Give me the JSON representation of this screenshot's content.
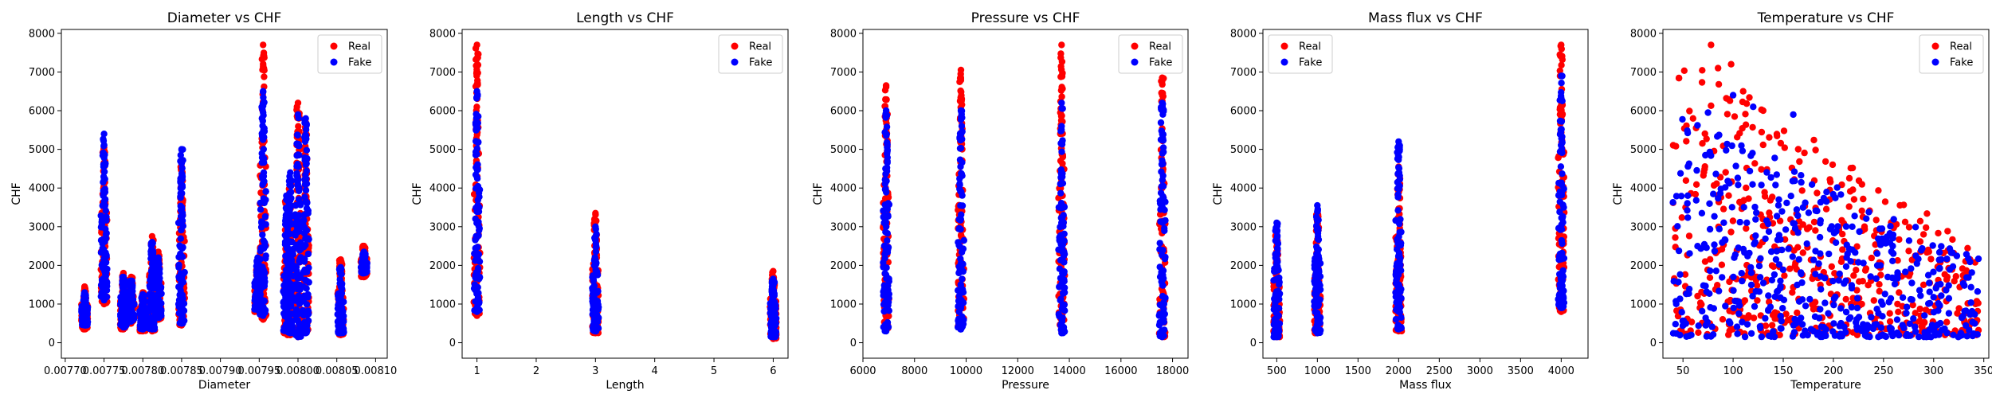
{
  "colors": {
    "real": "#ff0000",
    "fake": "#0000ff",
    "legend_border": "#cccccc"
  },
  "chart_data": [
    {
      "type": "scatter",
      "title": "Diameter vs CHF",
      "xlabel": "Diameter",
      "ylabel": "CHF",
      "xlim": [
        0.007695,
        0.008115
      ],
      "ylim": [
        -400,
        8100
      ],
      "xticks": [
        0.0077,
        0.00775,
        0.0078,
        0.00785,
        0.0079,
        0.00795,
        0.008,
        0.00805,
        0.0081
      ],
      "xtick_labels": [
        "0.00770",
        "0.00775",
        "0.00780",
        "0.00785",
        "0.00790",
        "0.00795",
        "0.00800",
        "0.00805",
        "0.00810"
      ],
      "yticks": [
        0,
        1000,
        2000,
        3000,
        4000,
        5000,
        6000,
        7000,
        8000
      ],
      "legend": {
        "location": "upper right",
        "entries": [
          "Real",
          "Fake"
        ]
      },
      "series": [
        {
          "name": "Real",
          "columns": [
            {
              "x": 0.007725,
              "y": [
                350,
                1450
              ]
            },
            {
              "x": 0.00775,
              "y": [
                1000,
                5050
              ]
            },
            {
              "x": 0.007775,
              "y": [
                350,
                1800
              ]
            },
            {
              "x": 0.007785,
              "y": [
                500,
                1700
              ]
            },
            {
              "x": 0.0078,
              "y": [
                300,
                1300
              ]
            },
            {
              "x": 0.007812,
              "y": [
                300,
                2750
              ]
            },
            {
              "x": 0.00782,
              "y": [
                600,
                2350
              ]
            },
            {
              "x": 0.00785,
              "y": [
                450,
                4550
              ]
            },
            {
              "x": 0.007948,
              "y": [
                800,
                1900
              ]
            },
            {
              "x": 0.007955,
              "y": [
                600,
                7700
              ]
            },
            {
              "x": 0.007985,
              "y": [
                250,
                3700
              ]
            },
            {
              "x": 0.00799,
              "y": [
                200,
                4200
              ]
            },
            {
              "x": 0.008,
              "y": [
                150,
                6200
              ]
            },
            {
              "x": 0.00801,
              "y": [
                300,
                5700
              ]
            },
            {
              "x": 0.008055,
              "y": [
                200,
                2150
              ]
            },
            {
              "x": 0.008085,
              "y": [
                1700,
                2500
              ]
            }
          ]
        },
        {
          "name": "Fake",
          "columns": [
            {
              "x": 0.007725,
              "y": [
                450,
                1300
              ]
            },
            {
              "x": 0.00775,
              "y": [
                1100,
                5400
              ]
            },
            {
              "x": 0.007775,
              "y": [
                400,
                1700
              ]
            },
            {
              "x": 0.007785,
              "y": [
                550,
                1600
              ]
            },
            {
              "x": 0.0078,
              "y": [
                350,
                1250
              ]
            },
            {
              "x": 0.007812,
              "y": [
                350,
                2600
              ]
            },
            {
              "x": 0.00782,
              "y": [
                650,
                2200
              ]
            },
            {
              "x": 0.00785,
              "y": [
                500,
                5000
              ]
            },
            {
              "x": 0.007948,
              "y": [
                850,
                2200
              ]
            },
            {
              "x": 0.007955,
              "y": [
                700,
                6500
              ]
            },
            {
              "x": 0.007985,
              "y": [
                300,
                3800
              ]
            },
            {
              "x": 0.00799,
              "y": [
                250,
                4400
              ]
            },
            {
              "x": 0.008,
              "y": [
                150,
                5900
              ]
            },
            {
              "x": 0.00801,
              "y": [
                250,
                5800
              ]
            },
            {
              "x": 0.008055,
              "y": [
                250,
                1950
              ]
            },
            {
              "x": 0.008085,
              "y": [
                1800,
                2350
              ]
            }
          ]
        }
      ]
    },
    {
      "type": "scatter",
      "title": "Length vs CHF",
      "xlabel": "Length",
      "ylabel": "CHF",
      "xlim": [
        0.75,
        6.25
      ],
      "ylim": [
        -400,
        8100
      ],
      "xticks": [
        1,
        2,
        3,
        4,
        5,
        6
      ],
      "xtick_labels": [
        "1",
        "2",
        "3",
        "4",
        "5",
        "6"
      ],
      "yticks": [
        0,
        1000,
        2000,
        3000,
        4000,
        5000,
        6000,
        7000,
        8000
      ],
      "legend": {
        "location": "upper right",
        "entries": [
          "Real",
          "Fake"
        ]
      },
      "series": [
        {
          "name": "Real",
          "columns": [
            {
              "x": 1,
              "y": [
                700,
                7700
              ]
            },
            {
              "x": 3,
              "y": [
                250,
                3350
              ]
            },
            {
              "x": 6,
              "y": [
                100,
                1850
              ]
            }
          ]
        },
        {
          "name": "Fake",
          "columns": [
            {
              "x": 1,
              "y": [
                800,
                6500
              ]
            },
            {
              "x": 3,
              "y": [
                300,
                3000
              ]
            },
            {
              "x": 6,
              "y": [
                150,
                1650
              ]
            }
          ]
        }
      ]
    },
    {
      "type": "scatter",
      "title": "Pressure vs CHF",
      "xlabel": "Pressure",
      "ylabel": "CHF",
      "xlim": [
        6000,
        18600
      ],
      "ylim": [
        -400,
        8100
      ],
      "xticks": [
        6000,
        8000,
        10000,
        12000,
        14000,
        16000,
        18000
      ],
      "xtick_labels": [
        "6000",
        "8000",
        "10000",
        "12000",
        "14000",
        "16000",
        "18000"
      ],
      "yticks": [
        0,
        1000,
        2000,
        3000,
        4000,
        5000,
        6000,
        7000,
        8000
      ],
      "legend": {
        "location": "upper right",
        "entries": [
          "Real",
          "Fake"
        ]
      },
      "series": [
        {
          "name": "Real",
          "columns": [
            {
              "x": 6900,
              "y": [
                350,
                6650
              ]
            },
            {
              "x": 9800,
              "y": [
                400,
                7050
              ]
            },
            {
              "x": 13700,
              "y": [
                300,
                7700
              ]
            },
            {
              "x": 17600,
              "y": [
                150,
                6850
              ]
            }
          ]
        },
        {
          "name": "Fake",
          "columns": [
            {
              "x": 6900,
              "y": [
                300,
                6000
              ]
            },
            {
              "x": 9800,
              "y": [
                350,
                6000
              ]
            },
            {
              "x": 13700,
              "y": [
                250,
                6200
              ]
            },
            {
              "x": 17600,
              "y": [
                150,
                6200
              ]
            }
          ]
        }
      ]
    },
    {
      "type": "scatter",
      "title": "Mass flux vs CHF",
      "xlabel": "Mass flux",
      "ylabel": "CHF",
      "xlim": [
        330,
        4330
      ],
      "ylim": [
        -400,
        8100
      ],
      "xticks": [
        500,
        1000,
        1500,
        2000,
        2500,
        3000,
        3500,
        4000
      ],
      "xtick_labels": [
        "500",
        "1000",
        "1500",
        "2000",
        "2500",
        "3000",
        "3500",
        "4000"
      ],
      "yticks": [
        0,
        1000,
        2000,
        3000,
        4000,
        5000,
        6000,
        7000,
        8000
      ],
      "legend": {
        "location": "upper left",
        "entries": [
          "Real",
          "Fake"
        ]
      },
      "series": [
        {
          "name": "Real",
          "columns": [
            {
              "x": 500,
              "y": [
                150,
                2850
              ]
            },
            {
              "x": 1000,
              "y": [
                250,
                3350
              ]
            },
            {
              "x": 2000,
              "y": [
                300,
                4550
              ]
            },
            {
              "x": 4000,
              "y": [
                800,
                7700
              ]
            }
          ]
        },
        {
          "name": "Fake",
          "columns": [
            {
              "x": 500,
              "y": [
                150,
                3100
              ]
            },
            {
              "x": 1000,
              "y": [
                250,
                3550
              ]
            },
            {
              "x": 2000,
              "y": [
                350,
                5200
              ]
            },
            {
              "x": 4000,
              "y": [
                900,
                6900
              ]
            }
          ]
        }
      ]
    },
    {
      "type": "scatter",
      "title": "Temperature vs CHF",
      "xlabel": "Temperature",
      "ylabel": "CHF",
      "xlim": [
        30,
        355
      ],
      "ylim": [
        -400,
        8100
      ],
      "xticks": [
        50,
        100,
        150,
        200,
        250,
        300,
        350
      ],
      "xtick_labels": [
        "50",
        "100",
        "150",
        "200",
        "250",
        "300",
        "350"
      ],
      "yticks": [
        0,
        1000,
        2000,
        3000,
        4000,
        5000,
        6000,
        7000,
        8000
      ],
      "legend": {
        "location": "upper right",
        "entries": [
          "Real",
          "Fake"
        ]
      },
      "series": [
        {
          "name": "Real",
          "cloud": {
            "x_range": [
              40,
              345
            ],
            "y_low": 200,
            "y_high_start": 7700,
            "y_high_end": 2500
          },
          "outliers": [
            [
              78,
              7700
            ],
            [
              85,
              7100
            ],
            [
              98,
              7200
            ],
            [
              110,
              6500
            ],
            [
              60,
              5800
            ],
            [
              130,
              6000
            ]
          ]
        },
        {
          "name": "Fake",
          "cloud": {
            "x_range": [
              40,
              345
            ],
            "y_low": 150,
            "y_high_start": 6200,
            "y_high_end": 2200
          },
          "outliers": [
            [
              75,
              5950
            ],
            [
              100,
              6400
            ],
            [
              120,
              6100
            ],
            [
              160,
              5900
            ]
          ]
        }
      ]
    }
  ]
}
